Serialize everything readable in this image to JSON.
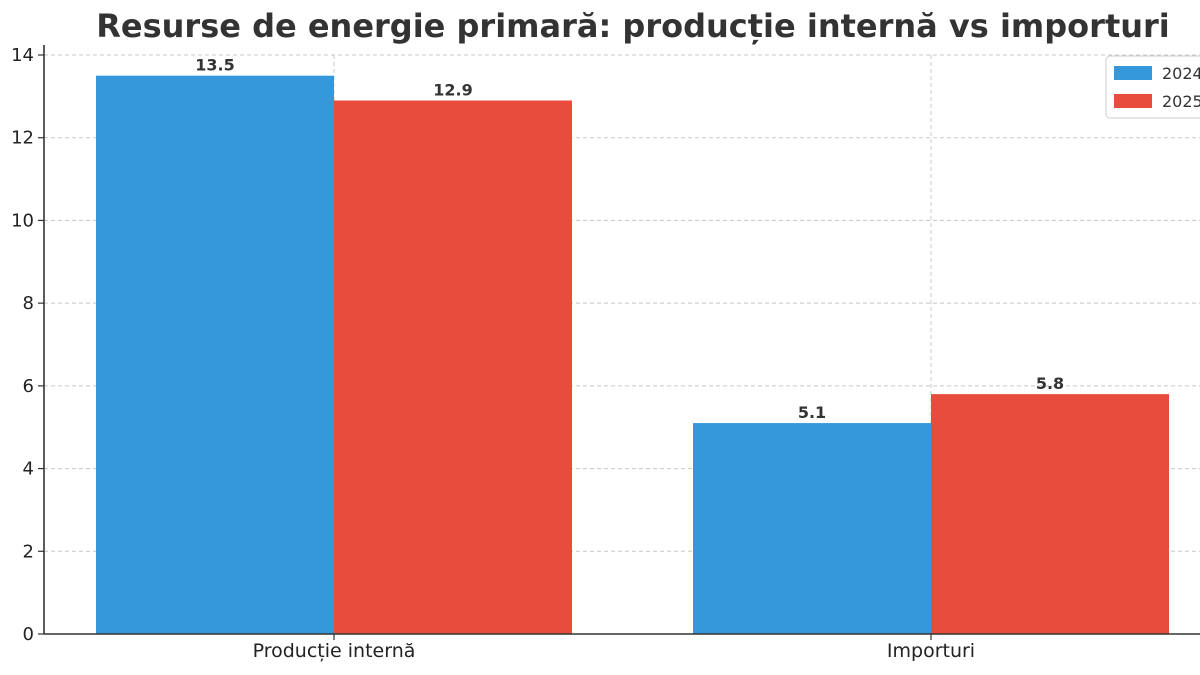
{
  "chart_data": {
    "type": "bar",
    "title": "Resurse de energie primară: producție internă vs importuri",
    "xlabel": "",
    "ylabel": "",
    "categories": [
      "Producție internă",
      "Importuri"
    ],
    "series": [
      {
        "name": "2024",
        "values": [
          13.5,
          5.1
        ],
        "color": "#3498db"
      },
      {
        "name": "2025",
        "values": [
          12.9,
          5.8
        ],
        "color": "#e74c3c"
      }
    ],
    "ylim": [
      0,
      14
    ],
    "yticks": [
      0,
      2,
      4,
      6,
      8,
      10,
      12,
      14
    ],
    "ytick_labels": [
      "0",
      "2",
      "4",
      "6",
      "8",
      "10",
      "12",
      "14"
    ],
    "grid": true,
    "legend": "top-right",
    "data_labels": true
  }
}
